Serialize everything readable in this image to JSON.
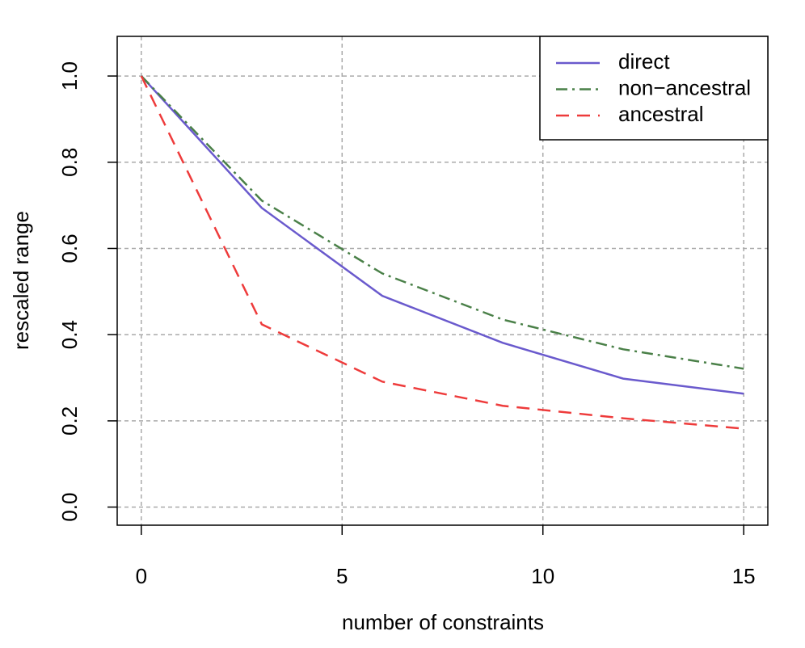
{
  "chart_data": {
    "type": "line",
    "xlabel": "number of constraints",
    "ylabel": "rescaled range",
    "x": [
      0,
      3,
      6,
      9,
      12,
      15
    ],
    "series": [
      {
        "name": "direct",
        "color": "#6a5acd",
        "linestyle": "solid",
        "values": [
          1.0,
          0.694,
          0.49,
          0.381,
          0.298,
          0.263
        ]
      },
      {
        "name": "non−ancestral",
        "color": "#4a8048",
        "linestyle": "dashdot",
        "values": [
          1.0,
          0.711,
          0.542,
          0.435,
          0.366,
          0.321
        ]
      },
      {
        "name": "ancestral",
        "color": "#ee3b3b",
        "linestyle": "dashed",
        "values": [
          1.0,
          0.424,
          0.291,
          0.235,
          0.206,
          0.182
        ]
      }
    ],
    "xlim": [
      -0.6,
      15.6
    ],
    "ylim": [
      -0.042,
      1.092
    ],
    "xticks": [
      0,
      5,
      10,
      15
    ],
    "yticks": [
      {
        "value": 0,
        "label": "0.0"
      },
      {
        "value": 0.2,
        "label": "0.2"
      },
      {
        "value": 0.4,
        "label": "0.4"
      },
      {
        "value": 0.6,
        "label": "0.6"
      },
      {
        "value": 0.8,
        "label": "0.8"
      },
      {
        "value": 1,
        "label": "1.0"
      }
    ],
    "grid": true,
    "legend": "top-right"
  }
}
